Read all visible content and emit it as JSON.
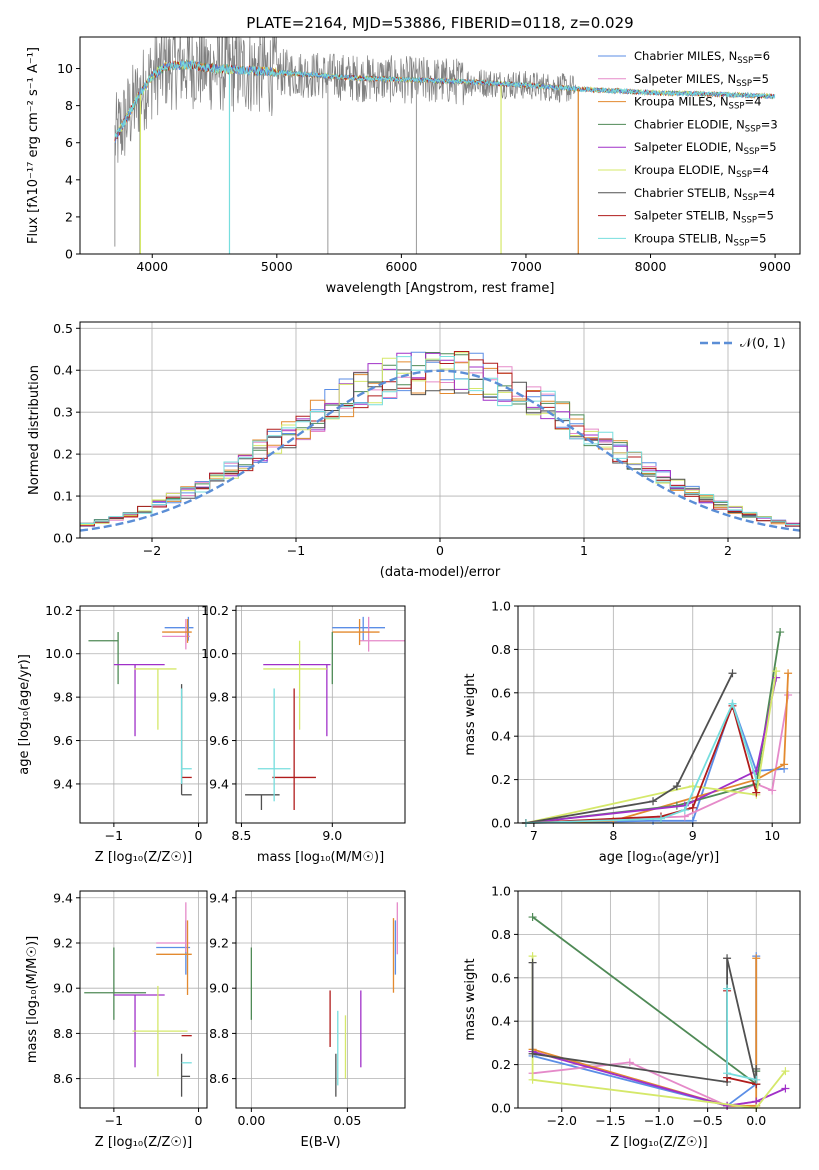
{
  "figure_title": "PLATE=2164, MJD=53886, FIBERID=0118, z=0.029",
  "colors": {
    "chabrier_miles": "#5b8ee6",
    "salpeter_miles": "#e58ac9",
    "kroupa_miles": "#e38a2f",
    "chabrier_elodie": "#4f8a56",
    "salpeter_elodie": "#a030c8",
    "kroupa_elodie": "#d5e86a",
    "chabrier_stelib": "#505050",
    "salpeter_stelib": "#b01c1c",
    "kroupa_stelib": "#77dede",
    "data_gray": "#7f7f7f"
  },
  "legend_entries": [
    {
      "text": "Chabrier MILES, N",
      "sub": "SSP",
      "tail": "=6",
      "color_key": "chabrier_miles"
    },
    {
      "text": "Salpeter MILES, N",
      "sub": "SSP",
      "tail": "=5",
      "color_key": "salpeter_miles"
    },
    {
      "text": "Kroupa MILES, N",
      "sub": "SSP",
      "tail": "=4",
      "color_key": "kroupa_miles"
    },
    {
      "text": "Chabrier ELODIE, N",
      "sub": "SSP",
      "tail": "=3",
      "color_key": "chabrier_elodie"
    },
    {
      "text": "Salpeter ELODIE, N",
      "sub": "SSP",
      "tail": "=5",
      "color_key": "salpeter_elodie"
    },
    {
      "text": "Kroupa ELODIE, N",
      "sub": "SSP",
      "tail": "=4",
      "color_key": "kroupa_elodie"
    },
    {
      "text": "Chabrier STELIB, N",
      "sub": "SSP",
      "tail": "=4",
      "color_key": "chabrier_stelib"
    },
    {
      "text": "Salpeter STELIB, N",
      "sub": "SSP",
      "tail": "=5",
      "color_key": "salpeter_stelib"
    },
    {
      "text": "Kroupa STELIB, N",
      "sub": "SSP",
      "tail": "=5",
      "color_key": "kroupa_stelib"
    }
  ],
  "chart_data": [
    {
      "id": "spectrum",
      "type": "line",
      "xlabel": "wavelength [Angstrom, rest frame]",
      "ylabel": "Flux [fλ10⁻¹⁷ erg cm⁻² s⁻¹ A⁻¹]",
      "xlim": [
        3420,
        9200
      ],
      "ylim": [
        0,
        11.7
      ],
      "xticks": [
        4000,
        5000,
        6000,
        7000,
        8000,
        9000
      ],
      "yticks": [
        0,
        2,
        4,
        6,
        8,
        10
      ],
      "continuum_knots_x": [
        3700,
        3800,
        3900,
        4000,
        4100,
        4300,
        4500,
        4800,
        5200,
        5600,
        6000,
        6500,
        7000,
        7400,
        8000,
        8600,
        9000
      ],
      "continuum_knots_y": [
        6.2,
        7.4,
        8.6,
        9.6,
        10.1,
        10.2,
        10.0,
        9.9,
        9.7,
        9.5,
        9.4,
        9.3,
        9.1,
        8.9,
        8.7,
        8.6,
        8.5
      ],
      "data_range": [
        3700,
        7400
      ],
      "model_range": [
        3700,
        9000
      ],
      "dips": [
        {
          "x": 3700,
          "y": 0.4
        },
        {
          "x": 3900,
          "y": 0.0
        },
        {
          "x": 4620,
          "y": 0.0
        },
        {
          "x": 5410,
          "y": 0.0
        },
        {
          "x": 6120,
          "y": 0.0
        },
        {
          "x": 6800,
          "y": 0.0
        },
        {
          "x": 7420,
          "y": 0.0
        }
      ]
    },
    {
      "id": "residuals",
      "type": "histogram",
      "xlabel": "(data-model)/error",
      "ylabel": "Normed distribution",
      "xlim": [
        -2.5,
        2.5
      ],
      "ylim": [
        0,
        0.515
      ],
      "xticks": [
        -2,
        -1,
        0,
        1,
        2
      ],
      "yticks": [
        0.0,
        0.1,
        0.2,
        0.3,
        0.4,
        0.5
      ],
      "bin_width": 0.1,
      "legend": "𝒩(0, 1)",
      "reference_curve": "standard normal, mean 0, sigma 1"
    },
    {
      "id": "age_vs_Z",
      "type": "errorbar",
      "xlabel": "Z [log₁₀(Z/Z☉)]",
      "ylabel": "age  [log₁₀(age/yr)]",
      "xlim": [
        -1.4,
        0.1
      ],
      "ylim": [
        9.22,
        10.22
      ],
      "xticks": [
        -1,
        0
      ],
      "yticks": [
        9.4,
        9.6,
        9.8,
        10.0,
        10.2
      ],
      "points": [
        {
          "model": "chabrier_miles",
          "x": -0.12,
          "xerr": [
            0.28,
            0.06
          ],
          "y": 10.12,
          "yerr": [
            0.06,
            0.05
          ]
        },
        {
          "model": "salpeter_miles",
          "x": -0.15,
          "xerr": [
            0.28,
            0.05
          ],
          "y": 10.08,
          "yerr": [
            0.06,
            0.08
          ]
        },
        {
          "model": "kroupa_miles",
          "x": -0.13,
          "xerr": [
            0.3,
            0.05
          ],
          "y": 10.1,
          "yerr": [
            0.05,
            0.06
          ]
        },
        {
          "model": "chabrier_elodie",
          "x": -0.95,
          "xerr": [
            0.35,
            0.0
          ],
          "y": 10.06,
          "yerr": [
            0.2,
            0.04
          ]
        },
        {
          "model": "salpeter_elodie",
          "x": -0.75,
          "xerr": [
            0.25,
            0.35
          ],
          "y": 9.95,
          "yerr": [
            0.33,
            0.0
          ]
        },
        {
          "model": "kroupa_elodie",
          "x": -0.48,
          "xerr": [
            0.28,
            0.22
          ],
          "y": 9.93,
          "yerr": [
            0.28,
            0.0
          ]
        },
        {
          "model": "chabrier_stelib",
          "x": -0.2,
          "xerr": [
            0.0,
            0.12
          ],
          "y": 9.35,
          "yerr": [
            0.0,
            0.51
          ]
        },
        {
          "model": "salpeter_stelib",
          "x": -0.2,
          "xerr": [
            0.0,
            0.12
          ],
          "y": 9.43,
          "yerr": [
            0.0,
            0.0
          ]
        },
        {
          "model": "kroupa_stelib",
          "x": -0.2,
          "xerr": [
            0.0,
            0.12
          ],
          "y": 9.47,
          "yerr": [
            0.07,
            0.37
          ]
        }
      ]
    },
    {
      "id": "age_vs_mass",
      "type": "errorbar",
      "xlabel": "mass [log₁₀(M/M☉)]",
      "ylabel": "",
      "xlim": [
        8.47,
        9.4
      ],
      "ylim": [
        9.22,
        10.22
      ],
      "xticks": [
        8.5,
        9.0
      ],
      "yticks": [
        9.4,
        9.6,
        9.8,
        10.0,
        10.2
      ],
      "points": [
        {
          "model": "chabrier_miles",
          "x": 9.17,
          "xerr": [
            0.17,
            0.12
          ],
          "y": 10.12,
          "yerr": [
            0.06,
            0.05
          ]
        },
        {
          "model": "salpeter_miles",
          "x": 9.2,
          "xerr": [
            0.05,
            0.2
          ],
          "y": 10.06,
          "yerr": [
            0.05,
            0.11
          ]
        },
        {
          "model": "kroupa_miles",
          "x": 9.15,
          "xerr": [
            0.15,
            0.11
          ],
          "y": 10.1,
          "yerr": [
            0.06,
            0.06
          ]
        },
        {
          "model": "chabrier_elodie",
          "x": 9.0,
          "xerr": [
            0.0,
            0.0
          ],
          "y": 10.06,
          "yerr": [
            0.2,
            0.04
          ]
        },
        {
          "model": "salpeter_elodie",
          "x": 8.97,
          "xerr": [
            0.35,
            0.02
          ],
          "y": 9.95,
          "yerr": [
            0.33,
            0.0
          ]
        },
        {
          "model": "kroupa_elodie",
          "x": 8.82,
          "xerr": [
            0.2,
            0.15
          ],
          "y": 9.93,
          "yerr": [
            0.28,
            0.13
          ]
        },
        {
          "model": "chabrier_stelib",
          "x": 8.61,
          "xerr": [
            0.09,
            0.1
          ],
          "y": 9.35,
          "yerr": [
            0.07,
            0.0
          ]
        },
        {
          "model": "salpeter_stelib",
          "x": 8.79,
          "xerr": [
            0.12,
            0.12
          ],
          "y": 9.43,
          "yerr": [
            0.15,
            0.41
          ]
        },
        {
          "model": "kroupa_stelib",
          "x": 8.68,
          "xerr": [
            0.09,
            0.09
          ],
          "y": 9.47,
          "yerr": [
            0.15,
            0.37
          ]
        }
      ]
    },
    {
      "id": "weight_vs_age",
      "type": "line",
      "xlabel": "age  [log₁₀(age/yr)]",
      "ylabel": "mass weight",
      "xlim": [
        6.8,
        10.35
      ],
      "ylim": [
        0,
        1.0
      ],
      "xticks": [
        7,
        8,
        9,
        10
      ],
      "yticks": [
        0.0,
        0.2,
        0.4,
        0.6,
        0.8,
        1.0
      ],
      "series": [
        {
          "model": "chabrier_miles",
          "x": [
            6.9,
            8.5,
            9.0,
            9.5,
            9.8,
            10.15
          ],
          "y": [
            0.0,
            0.01,
            0.01,
            0.55,
            0.24,
            0.25
          ]
        },
        {
          "model": "salpeter_miles",
          "x": [
            6.9,
            8.9,
            9.8,
            10.0,
            10.2
          ],
          "y": [
            0.0,
            0.03,
            0.18,
            0.15,
            0.59
          ]
        },
        {
          "model": "kroupa_miles",
          "x": [
            6.9,
            8.0,
            9.8,
            10.15,
            10.2
          ],
          "y": [
            0.0,
            0.01,
            0.2,
            0.27,
            0.69
          ]
        },
        {
          "model": "chabrier_elodie",
          "x": [
            6.9,
            8.8,
            9.8,
            10.1
          ],
          "y": [
            0.0,
            0.08,
            0.18,
            0.88
          ]
        },
        {
          "model": "salpeter_elodie",
          "x": [
            6.9,
            8.9,
            9.8,
            10.05
          ],
          "y": [
            0.0,
            0.08,
            0.24,
            0.67
          ]
        },
        {
          "model": "kroupa_elodie",
          "x": [
            6.9,
            9.0,
            9.8,
            10.05
          ],
          "y": [
            0.0,
            0.17,
            0.13,
            0.7
          ]
        },
        {
          "model": "chabrier_stelib",
          "x": [
            6.9,
            8.5,
            8.8,
            9.5
          ],
          "y": [
            0.0,
            0.1,
            0.17,
            0.69
          ]
        },
        {
          "model": "salpeter_stelib",
          "x": [
            6.9,
            8.6,
            9.0,
            9.5,
            9.8
          ],
          "y": [
            0.0,
            0.03,
            0.07,
            0.54,
            0.14
          ]
        },
        {
          "model": "kroupa_stelib",
          "x": [
            6.9,
            8.6,
            8.9,
            9.5,
            9.8
          ],
          "y": [
            0.0,
            0.02,
            0.06,
            0.55,
            0.2
          ]
        }
      ]
    },
    {
      "id": "mass_vs_Z",
      "type": "errorbar",
      "xlabel": "Z [log₁₀(Z/Z☉)]",
      "ylabel": "mass [log₁₀(M/M☉)]",
      "xlim": [
        -1.4,
        0.1
      ],
      "ylim": [
        8.47,
        9.43
      ],
      "xticks": [
        -1,
        0
      ],
      "yticks": [
        8.6,
        8.8,
        9.0,
        9.2,
        9.4
      ],
      "points": [
        {
          "model": "chabrier_miles",
          "x": -0.15,
          "xerr": [
            0.35,
            0.05
          ],
          "y": 9.18,
          "yerr": [
            0.12,
            0.12
          ]
        },
        {
          "model": "salpeter_miles",
          "x": -0.15,
          "xerr": [
            0.35,
            0.05
          ],
          "y": 9.2,
          "yerr": [
            0.04,
            0.18
          ]
        },
        {
          "model": "kroupa_miles",
          "x": -0.13,
          "xerr": [
            0.37,
            0.05
          ],
          "y": 9.15,
          "yerr": [
            0.18,
            0.15
          ]
        },
        {
          "model": "chabrier_elodie",
          "x": -1.0,
          "xerr": [
            0.35,
            0.38
          ],
          "y": 8.98,
          "yerr": [
            0.12,
            0.2
          ]
        },
        {
          "model": "salpeter_elodie",
          "x": -0.75,
          "xerr": [
            0.25,
            0.35
          ],
          "y": 8.97,
          "yerr": [
            0.32,
            0.0
          ]
        },
        {
          "model": "kroupa_elodie",
          "x": -0.48,
          "xerr": [
            0.3,
            0.35
          ],
          "y": 8.81,
          "yerr": [
            0.2,
            0.2
          ]
        },
        {
          "model": "chabrier_stelib",
          "x": -0.2,
          "xerr": [
            0.0,
            0.1
          ],
          "y": 8.61,
          "yerr": [
            0.09,
            0.1
          ]
        },
        {
          "model": "salpeter_stelib",
          "x": -0.2,
          "xerr": [
            0.0,
            0.12
          ],
          "y": 8.79,
          "yerr": [
            0.0,
            0.0
          ]
        },
        {
          "model": "kroupa_stelib",
          "x": -0.2,
          "xerr": [
            0.0,
            0.12
          ],
          "y": 8.67,
          "yerr": [
            0.0,
            0.0
          ]
        }
      ]
    },
    {
      "id": "mass_vs_EBV",
      "type": "errorbar",
      "xlabel": "E(B-V)",
      "ylabel": "",
      "xlim": [
        -0.008,
        0.08
      ],
      "ylim": [
        8.47,
        9.43
      ],
      "xticks": [
        0.0,
        0.05
      ],
      "yticks": [
        8.6,
        8.8,
        9.0,
        9.2,
        9.4
      ],
      "points": [
        {
          "model": "chabrier_miles",
          "x": 0.075,
          "xerr": [
            0,
            0
          ],
          "y": 9.18,
          "yerr": [
            0.12,
            0.12
          ]
        },
        {
          "model": "salpeter_miles",
          "x": 0.076,
          "xerr": [
            0,
            0
          ],
          "y": 9.2,
          "yerr": [
            0.05,
            0.18
          ]
        },
        {
          "model": "kroupa_miles",
          "x": 0.074,
          "xerr": [
            0,
            0
          ],
          "y": 9.15,
          "yerr": [
            0.17,
            0.16
          ]
        },
        {
          "model": "chabrier_elodie",
          "x": 0.0,
          "xerr": [
            0,
            0
          ],
          "y": 8.98,
          "yerr": [
            0.12,
            0.2
          ]
        },
        {
          "model": "salpeter_elodie",
          "x": 0.057,
          "xerr": [
            0,
            0
          ],
          "y": 8.87,
          "yerr": [
            0.22,
            0.12
          ]
        },
        {
          "model": "kroupa_elodie",
          "x": 0.049,
          "xerr": [
            0,
            0
          ],
          "y": 8.75,
          "yerr": [
            0.15,
            0.13
          ]
        },
        {
          "model": "chabrier_stelib",
          "x": 0.044,
          "xerr": [
            0,
            0
          ],
          "y": 8.61,
          "yerr": [
            0.09,
            0.1
          ]
        },
        {
          "model": "salpeter_stelib",
          "x": 0.041,
          "xerr": [
            0,
            0
          ],
          "y": 8.86,
          "yerr": [
            0.12,
            0.13
          ]
        },
        {
          "model": "kroupa_stelib",
          "x": 0.045,
          "xerr": [
            0,
            0
          ],
          "y": 8.72,
          "yerr": [
            0.15,
            0.18
          ]
        }
      ]
    },
    {
      "id": "weight_vs_Z",
      "type": "line",
      "xlabel": "Z [log₁₀(Z/Z☉)]",
      "ylabel": "mass weight",
      "xlim": [
        -2.45,
        0.45
      ],
      "ylim": [
        0,
        1.0
      ],
      "xticks": [
        -2.0,
        -1.5,
        -1.0,
        -0.5,
        0.0
      ],
      "yticks": [
        0.0,
        0.2,
        0.4,
        0.6,
        0.8,
        1.0
      ],
      "series": [
        {
          "model": "chabrier_miles",
          "x": [
            -2.3,
            -0.3,
            0.0,
            0.0
          ],
          "y": [
            0.24,
            0.01,
            0.11,
            0.7
          ]
        },
        {
          "model": "salpeter_miles",
          "x": [
            -2.3,
            -1.3,
            -0.3,
            0.0
          ],
          "y": [
            0.16,
            0.21,
            0.01,
            0.03
          ]
        },
        {
          "model": "kroupa_miles",
          "x": [
            -2.3,
            -0.3,
            0.0,
            0.0
          ],
          "y": [
            0.27,
            0.01,
            0.01,
            0.69
          ]
        },
        {
          "model": "chabrier_elodie",
          "x": [
            -2.3,
            0.0,
            0.0
          ],
          "y": [
            0.88,
            0.11,
            0.17
          ]
        },
        {
          "model": "salpeter_elodie",
          "x": [
            -2.3,
            -0.3,
            0.0,
            0.3
          ],
          "y": [
            0.26,
            0.01,
            0.03,
            0.09
          ]
        },
        {
          "model": "kroupa_elodie",
          "x": [
            -2.3,
            -2.3,
            0.0,
            0.3
          ],
          "y": [
            0.7,
            0.13,
            0.0,
            0.17
          ]
        },
        {
          "model": "chabrier_stelib",
          "x": [
            -2.3,
            -2.3,
            -0.3,
            -0.3,
            0.0,
            0.0
          ],
          "y": [
            0.67,
            0.25,
            0.12,
            0.69,
            0.11,
            0.18
          ]
        },
        {
          "model": "salpeter_stelib",
          "x": [
            -0.3,
            -0.3,
            0.0
          ],
          "y": [
            0.54,
            0.14,
            0.11
          ]
        },
        {
          "model": "kroupa_stelib",
          "x": [
            -0.3,
            -0.3,
            0.0
          ],
          "y": [
            0.55,
            0.16,
            0.13
          ]
        }
      ]
    }
  ]
}
